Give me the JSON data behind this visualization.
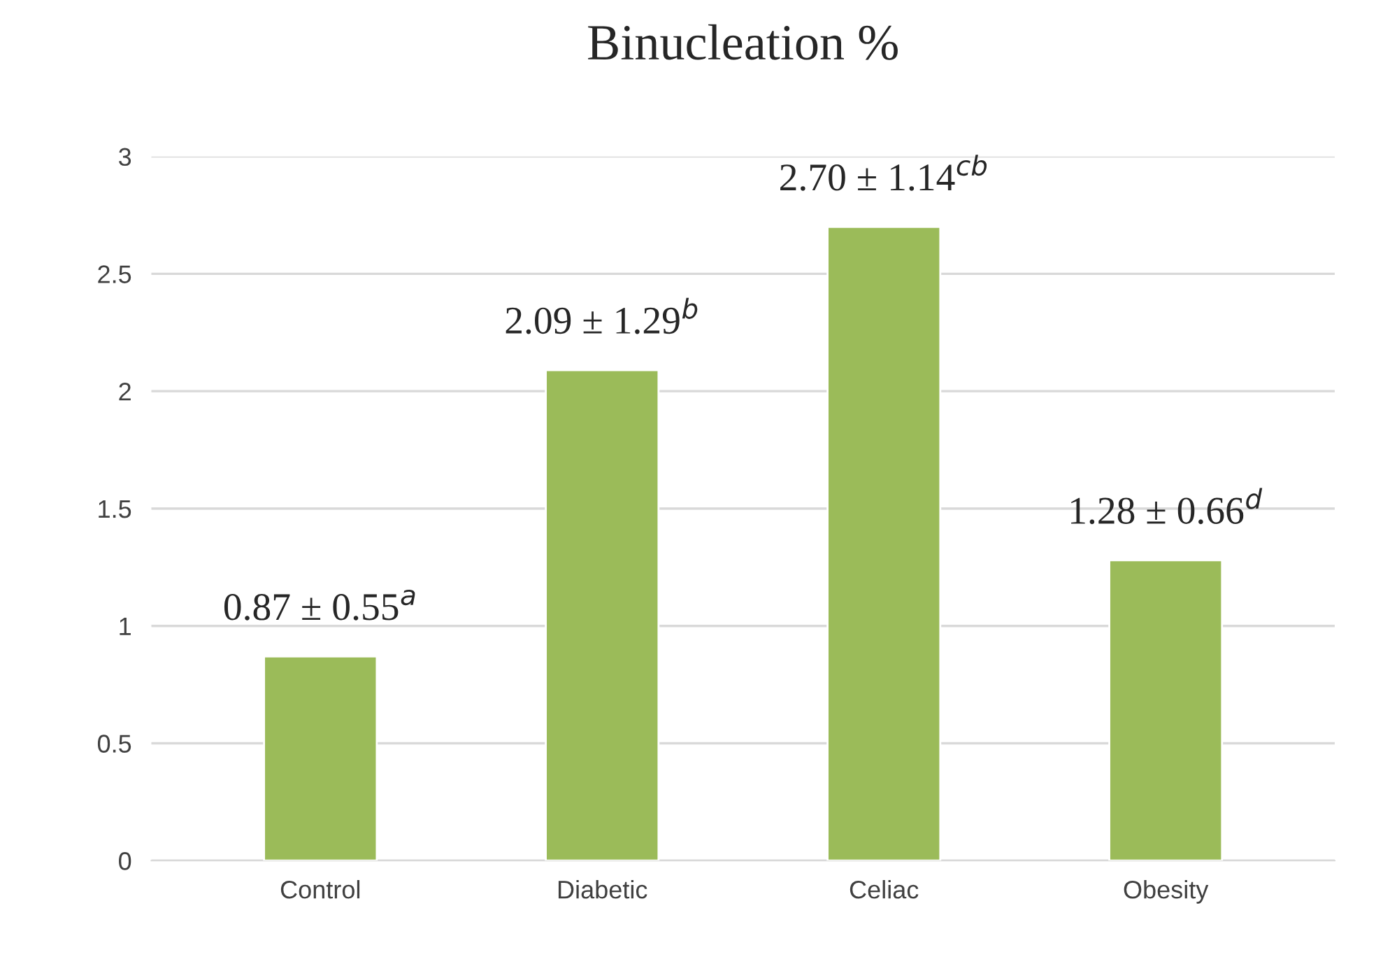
{
  "chart_data": {
    "type": "bar",
    "title": "Binucleation %",
    "categories": [
      "Control",
      "Diabetic",
      "Celiac",
      "Obesity"
    ],
    "values": [
      0.87,
      2.09,
      2.7,
      1.28
    ],
    "value_labels": [
      "0.87 ± 0.55$^{a}$",
      "2.09 ± 1.29$^{b}$",
      "2.70 ± 1.14$^{cb}$",
      "1.28 ± 0.66$^{d}$"
    ],
    "color": "#9bbb59",
    "ylim": [
      0,
      3
    ],
    "yticks": [
      0,
      0.5,
      1,
      1.5,
      2,
      2.5,
      3
    ],
    "grid": "y"
  }
}
